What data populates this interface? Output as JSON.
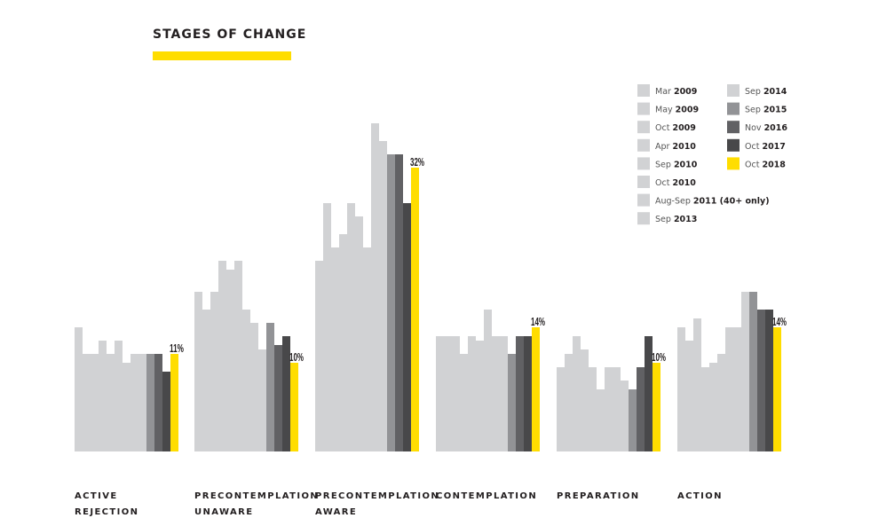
{
  "chart_data": {
    "type": "bar",
    "title": "STAGES OF CHANGE",
    "xlabel": "",
    "ylabel": "",
    "unit": "%",
    "grid": false,
    "legend_position": "top-right",
    "categories": [
      [
        "ACTIVE",
        "REJECTION"
      ],
      [
        "PRECONTEMPLATION",
        "UNAWARE"
      ],
      [
        "PRECONTEMPLATION",
        "AWARE"
      ],
      [
        "CONTEMPLATION"
      ],
      [
        "PREPARATION"
      ],
      [
        "ACTION"
      ]
    ],
    "series": [
      {
        "month": "Mar",
        "year": "2009",
        "color": "#d1d2d4",
        "values": [
          14,
          18,
          21.5,
          13,
          9.5,
          14
        ]
      },
      {
        "month": "May",
        "year": "2009",
        "color": "#d1d2d4",
        "values": [
          11,
          16,
          28,
          13,
          11,
          12.5
        ]
      },
      {
        "month": "Oct",
        "year": "2009",
        "color": "#d1d2d4",
        "values": [
          11,
          18,
          23,
          13,
          13,
          15
        ]
      },
      {
        "month": "Apr",
        "year": "2010",
        "color": "#d1d2d4",
        "values": [
          12.5,
          21.5,
          24.5,
          11,
          11.5,
          9.5
        ]
      },
      {
        "month": "Sep",
        "year": "2010",
        "color": "#d1d2d4",
        "values": [
          11,
          20.5,
          28,
          13,
          9.5,
          10
        ]
      },
      {
        "month": "Oct",
        "year": "2010",
        "color": "#d1d2d4",
        "values": [
          12.5,
          21.5,
          26.5,
          12.5,
          7,
          11
        ]
      },
      {
        "month": "Aug-Sep",
        "year": "2011 (40+ only)",
        "color": "#d1d2d4",
        "values": [
          10,
          16,
          23,
          16,
          9.5,
          14
        ]
      },
      {
        "month": "Sep",
        "year": "2013",
        "color": "#d1d2d4",
        "values": [
          11,
          14.5,
          37,
          13,
          9.5,
          14
        ]
      },
      {
        "month": "Sep",
        "year": "2014",
        "color": "#d1d2d4",
        "values": [
          11,
          11.5,
          35,
          13,
          8,
          18
        ]
      },
      {
        "month": "Sep",
        "year": "2015",
        "color": "#929396",
        "values": [
          11,
          14.5,
          33.5,
          11,
          7,
          18
        ]
      },
      {
        "month": "Nov",
        "year": "2016",
        "color": "#616164",
        "values": [
          11,
          12,
          33.5,
          13,
          9.5,
          16
        ]
      },
      {
        "month": "Oct",
        "year": "2017",
        "color": "#48484a",
        "values": [
          9,
          13,
          28,
          13,
          13,
          16
        ]
      },
      {
        "month": "Oct",
        "year": "2018",
        "color": "#ffdd00",
        "values": [
          11,
          10,
          32,
          14,
          10,
          14
        ]
      }
    ],
    "data_labels": [
      "11%",
      "10%",
      "32%",
      "14%",
      "10%",
      "14%"
    ]
  }
}
